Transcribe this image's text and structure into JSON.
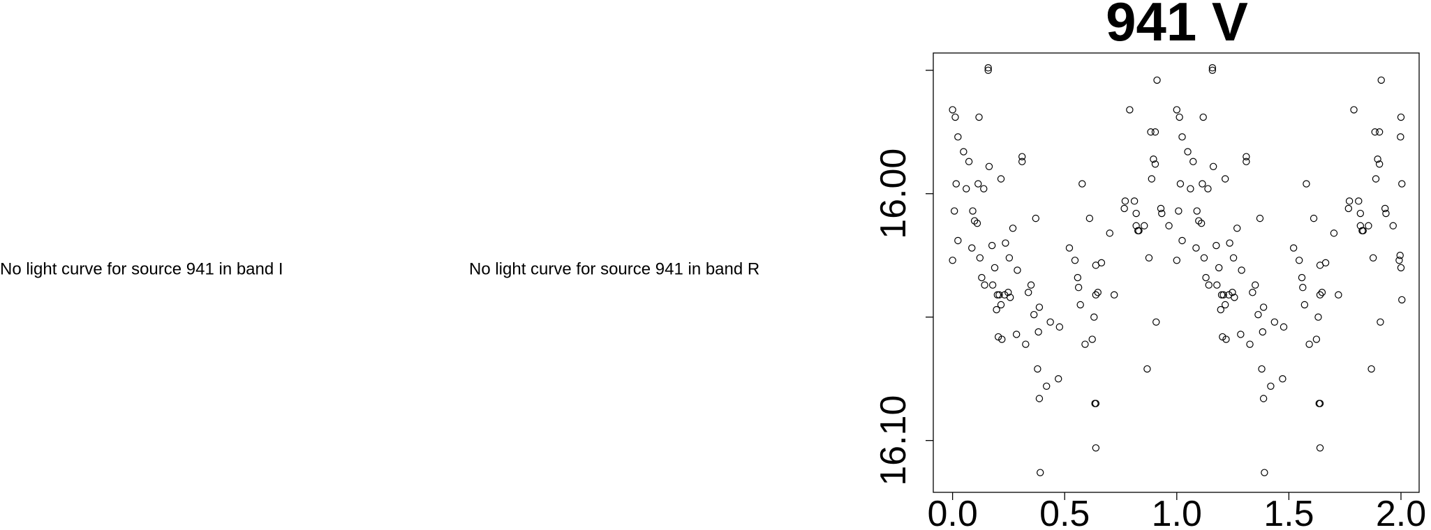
{
  "messages": [
    "No light curve for source 941 in band I",
    "No light curve for source 941 in band R"
  ],
  "chart_data": {
    "type": "scatter",
    "title": "941 V",
    "x": [
      0.0,
      0.0,
      0.012,
      0.008,
      0.016,
      0.024,
      0.024,
      0.049,
      0.061,
      0.073,
      0.086,
      0.09,
      0.098,
      0.11,
      0.114,
      0.118,
      0.122,
      0.13,
      0.139,
      0.143,
      0.159,
      0.159,
      0.163,
      0.176,
      0.179,
      0.188,
      0.196,
      0.2,
      0.204,
      0.208,
      0.216,
      0.216,
      0.22,
      0.232,
      0.236,
      0.248,
      0.253,
      0.257,
      0.269,
      0.285,
      0.289,
      0.31,
      0.31,
      0.326,
      0.338,
      0.35,
      0.363,
      0.371,
      0.379,
      0.383,
      0.387,
      0.387,
      0.391,
      0.419,
      0.436,
      0.472,
      0.477,
      0.521,
      0.546,
      0.558,
      0.562,
      0.57,
      0.578,
      0.591,
      0.611,
      0.623,
      0.631,
      0.635,
      0.639,
      0.639,
      0.639,
      0.639,
      0.648,
      0.664,
      0.701,
      0.721,
      0.766,
      0.77,
      0.79,
      0.811,
      0.819,
      0.819,
      0.827,
      0.831,
      0.855,
      0.868,
      0.876,
      0.884,
      0.888,
      0.896,
      0.904,
      0.904,
      0.908,
      0.912,
      0.929,
      0.933,
      0.965,
      1.0,
      1.0,
      1.012,
      1.008,
      1.016,
      1.024,
      1.024,
      1.049,
      1.061,
      1.073,
      1.086,
      1.09,
      1.098,
      1.11,
      1.114,
      1.118,
      1.122,
      1.13,
      1.139,
      1.143,
      1.159,
      1.159,
      1.163,
      1.176,
      1.179,
      1.188,
      1.196,
      1.2,
      1.204,
      1.208,
      1.216,
      1.216,
      1.22,
      1.232,
      1.236,
      1.248,
      1.253,
      1.257,
      1.269,
      1.285,
      1.289,
      1.31,
      1.31,
      1.326,
      1.338,
      1.35,
      1.363,
      1.371,
      1.379,
      1.383,
      1.387,
      1.387,
      1.391,
      1.419,
      1.436,
      1.472,
      1.477,
      1.521,
      1.546,
      1.558,
      1.562,
      1.57,
      1.578,
      1.591,
      1.611,
      1.623,
      1.631,
      1.635,
      1.639,
      1.639,
      1.639,
      1.639,
      1.648,
      1.664,
      1.701,
      1.721,
      1.766,
      1.77,
      1.79,
      1.811,
      1.819,
      1.819,
      1.827,
      1.831,
      1.855,
      1.868,
      1.876,
      1.884,
      1.888,
      1.896,
      1.904,
      1.904,
      1.908,
      1.912,
      1.929,
      1.933,
      1.965,
      2.0,
      1.998,
      2.004,
      1.996,
      2.0,
      1.992,
      2.004
    ],
    "values": [
      16.027,
      15.966,
      15.969,
      16.007,
      15.996,
      15.977,
      16.019,
      15.983,
      15.998,
      15.987,
      16.022,
      16.007,
      16.011,
      16.012,
      15.996,
      15.969,
      16.026,
      16.034,
      15.998,
      16.037,
      15.95,
      15.949,
      15.989,
      16.021,
      16.037,
      16.03,
      16.047,
      16.041,
      16.058,
      16.041,
      15.994,
      16.045,
      16.059,
      16.041,
      16.02,
      16.04,
      16.026,
      16.042,
      16.014,
      16.057,
      16.031,
      15.985,
      15.987,
      16.061,
      16.04,
      16.037,
      16.049,
      16.01,
      16.071,
      16.056,
      16.083,
      16.046,
      16.113,
      16.078,
      16.052,
      16.075,
      16.054,
      16.022,
      16.027,
      16.034,
      16.038,
      16.045,
      15.996,
      16.061,
      16.01,
      16.059,
      16.05,
      16.085,
      16.085,
      16.041,
      16.103,
      16.029,
      16.04,
      16.028,
      16.016,
      16.041,
      16.006,
      16.003,
      15.966,
      16.003,
      16.008,
      16.013,
      16.015,
      16.015,
      16.013,
      16.071,
      16.026,
      15.975,
      15.994,
      15.986,
      15.988,
      15.975,
      16.052,
      15.954,
      16.006,
      16.008,
      16.013,
      16.027,
      15.966,
      15.969,
      16.007,
      15.996,
      15.977,
      16.019,
      15.983,
      15.998,
      15.987,
      16.022,
      16.007,
      16.011,
      16.012,
      15.996,
      15.969,
      16.026,
      16.034,
      15.998,
      16.037,
      15.95,
      15.949,
      15.989,
      16.021,
      16.037,
      16.03,
      16.047,
      16.041,
      16.058,
      16.041,
      15.994,
      16.045,
      16.059,
      16.041,
      16.02,
      16.04,
      16.026,
      16.042,
      16.014,
      16.057,
      16.031,
      15.985,
      15.987,
      16.061,
      16.04,
      16.037,
      16.049,
      16.01,
      16.071,
      16.056,
      16.083,
      16.046,
      16.113,
      16.078,
      16.052,
      16.075,
      16.054,
      16.022,
      16.027,
      16.034,
      16.038,
      16.045,
      15.996,
      16.061,
      16.01,
      16.059,
      16.05,
      16.085,
      16.085,
      16.041,
      16.103,
      16.029,
      16.04,
      16.028,
      16.016,
      16.041,
      16.006,
      16.003,
      15.966,
      16.003,
      16.008,
      16.013,
      16.015,
      16.015,
      16.013,
      16.071,
      16.026,
      15.975,
      15.994,
      15.986,
      15.988,
      15.975,
      16.052,
      15.954,
      16.006,
      16.008,
      16.013,
      15.969,
      15.977,
      15.996,
      16.025,
      16.03,
      16.027,
      16.043
    ],
    "color": "#000000",
    "xlim": [
      -0.086,
      2.081
    ],
    "ylim": [
      16.121,
      15.943
    ],
    "xticks": [
      {
        "value": 0,
        "label": "0.0"
      },
      {
        "value": 0.5,
        "label": "0.5"
      },
      {
        "value": 1,
        "label": "1.0"
      },
      {
        "value": 1.5,
        "label": "1.5"
      },
      {
        "value": 2,
        "label": "2.0"
      }
    ],
    "yticks": [
      {
        "value": 15.95,
        "label": null
      },
      {
        "value": 16,
        "label": "16.00"
      },
      {
        "value": 16.05,
        "label": null
      },
      {
        "value": 16.1,
        "label": "16.10"
      }
    ]
  }
}
